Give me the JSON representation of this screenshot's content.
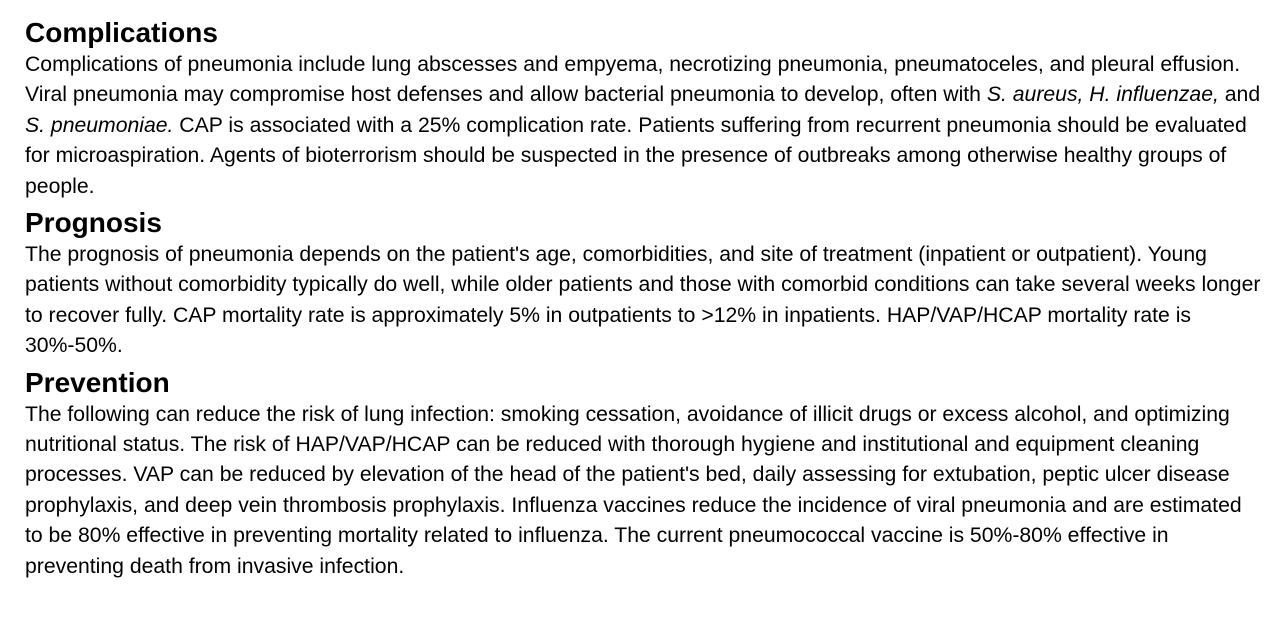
{
  "sections": [
    {
      "heading": "Complications",
      "runs": [
        {
          "text": "Complications of pneumonia include lung abscesses and empyema, necrotizing pneumonia, pneumatoceles, and pleural effusion. Viral pneumonia may compromise host defenses and allow bacterial pneumonia to develop, often with ",
          "italic": false
        },
        {
          "text": "S. aureus, H. influenzae,",
          "italic": true
        },
        {
          "text": " and ",
          "italic": false
        },
        {
          "text": "S. pneumoniae.",
          "italic": true
        },
        {
          "text": " CAP is associated with a 25% complication rate. Patients suffering from recurrent pneumonia should be evaluated for microaspiration. Agents of bioterrorism should be suspected in the presence of outbreaks among otherwise healthy groups of people.",
          "italic": false
        }
      ]
    },
    {
      "heading": "Prognosis",
      "runs": [
        {
          "text": "The prognosis of pneumonia depends on the patient's age, comorbidities, and site of treatment (inpatient or outpatient). Young patients without comorbidity typically do well, while older patients and those with comorbid conditions can take several weeks longer to recover fully. CAP mortality rate is approximately 5% in outpatients to >12% in inpatients. HAP/VAP/HCAP mortality rate is 30%-50%.",
          "italic": false
        }
      ]
    },
    {
      "heading": "Prevention",
      "runs": [
        {
          "text": "The following can reduce the risk of lung infection: smoking cessation, avoidance of illicit drugs or excess alcohol, and optimizing nutritional status. The risk of HAP/VAP/HCAP can be reduced with thorough hygiene and institutional and equipment cleaning processes. VAP can be reduced by elevation of the head of the patient's bed, daily assessing for extubation, peptic ulcer disease prophylaxis, and deep vein thrombosis prophylaxis. Influenza vaccines reduce the incidence of viral pneumonia and are estimated to be 80% effective in preventing mortality related to influenza. The current pneumococcal vaccine is 50%-80% effective in preventing death from invasive infection.",
          "italic": false
        }
      ]
    }
  ]
}
